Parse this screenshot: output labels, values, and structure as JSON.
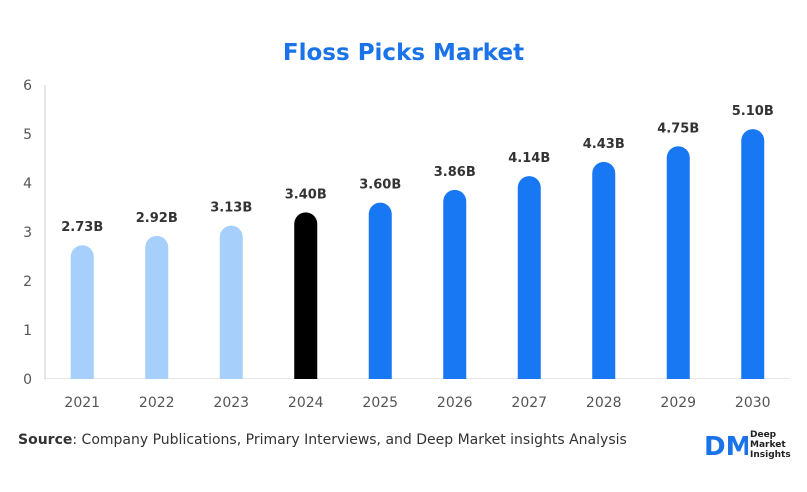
{
  "chart_data": {
    "type": "bar",
    "title": "Floss Picks Market",
    "categories": [
      "2021",
      "2022",
      "2023",
      "2024",
      "2025",
      "2026",
      "2027",
      "2028",
      "2029",
      "2030"
    ],
    "values": [
      2.73,
      2.92,
      3.13,
      3.4,
      3.6,
      3.86,
      4.14,
      4.43,
      4.75,
      5.1
    ],
    "data_labels": [
      "2.73B",
      "2.92B",
      "3.13B",
      "3.40B",
      "3.60B",
      "3.86B",
      "4.14B",
      "4.43B",
      "4.75B",
      "5.10B"
    ],
    "bar_colors": [
      "#a6d0fb",
      "#a6d0fb",
      "#a6d0fb",
      "#000000",
      "#1877f2",
      "#1877f2",
      "#1877f2",
      "#1877f2",
      "#1877f2",
      "#1877f2"
    ],
    "ylim": [
      0,
      6
    ],
    "yticks": [
      "0",
      "1",
      "2",
      "3",
      "4",
      "5",
      "6"
    ],
    "xlabel": "",
    "ylabel": "",
    "grid": false,
    "legend": "none"
  },
  "source": {
    "label": "Source",
    "text": ": Company Publications, Primary Interviews, and Deep Market insights Analysis"
  },
  "logo": {
    "mark": "DM",
    "line1": "Deep",
    "line2": "Market",
    "line3": "Insights",
    "color": "#1a73e8"
  }
}
